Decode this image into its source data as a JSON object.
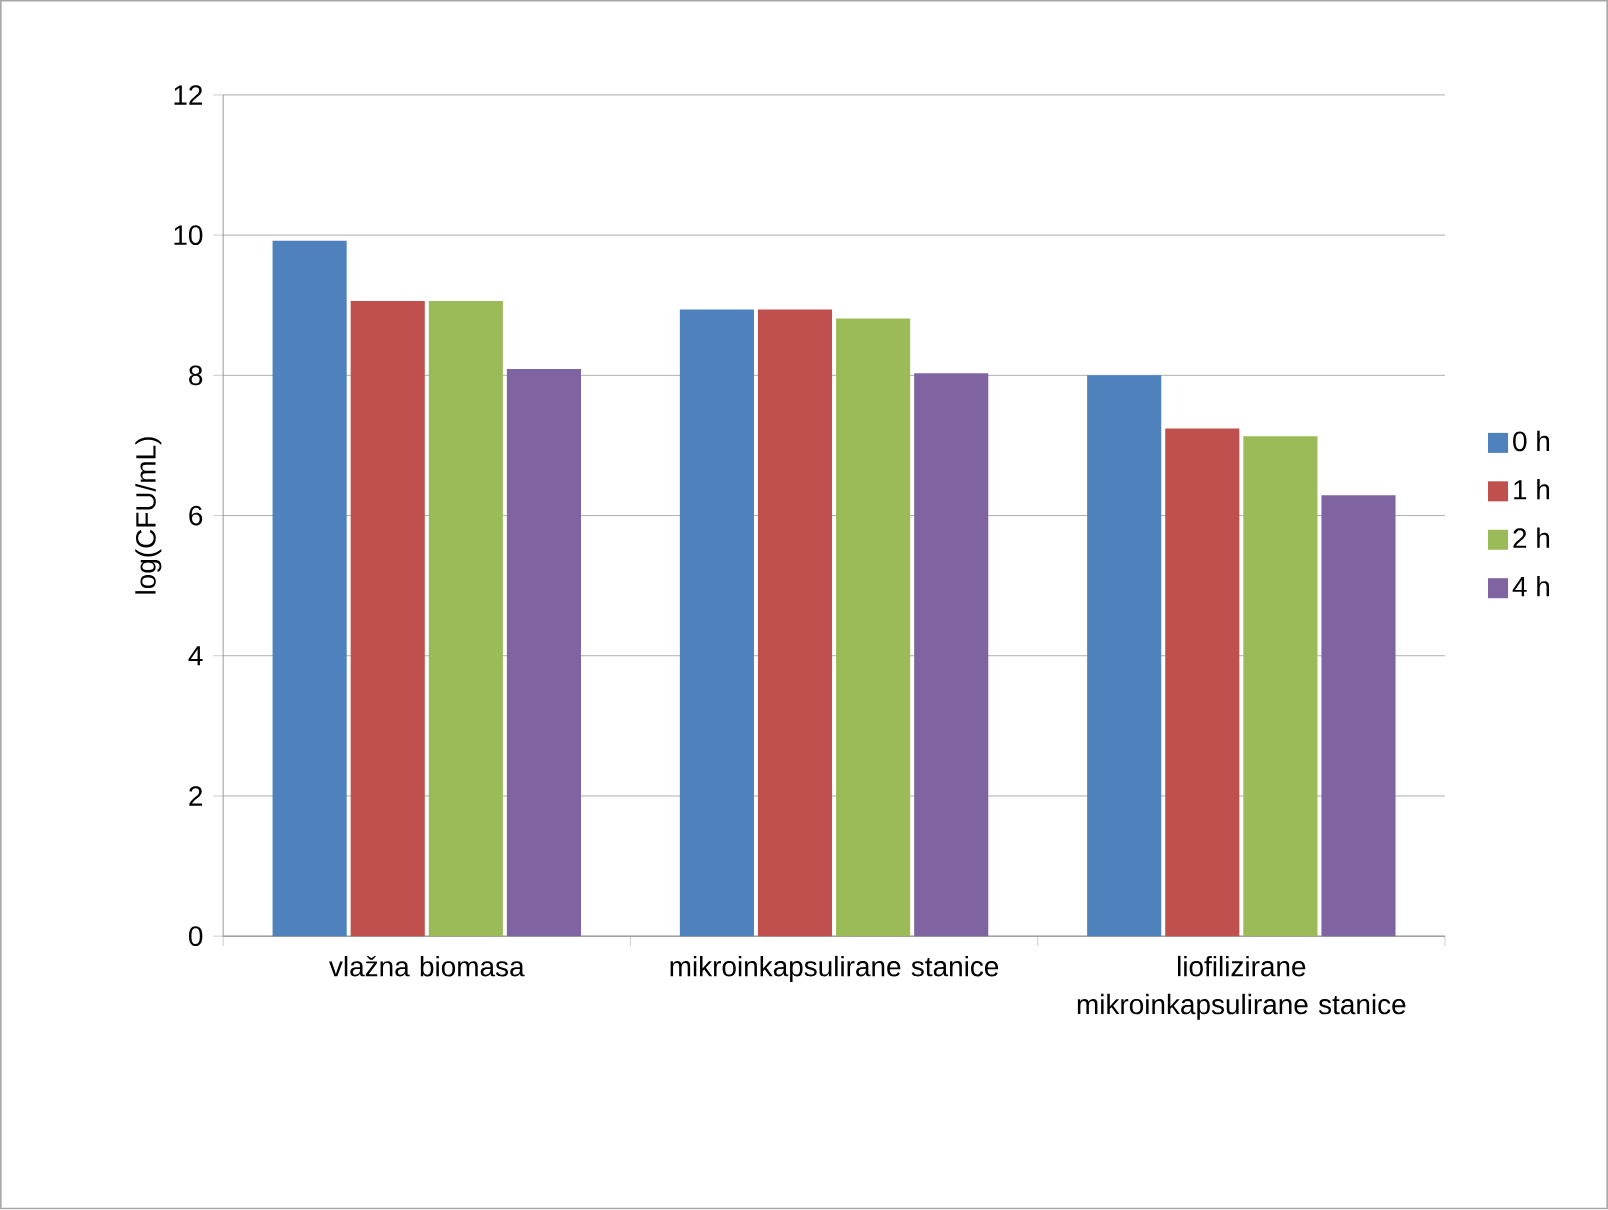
{
  "chart_data": {
    "type": "bar",
    "ylabel": "log(CFU/mL)",
    "categories": [
      "vlažna biomasa",
      "mikroinkapsulirane stanice",
      "liofilizirane mikroinkapsulirane stanice"
    ],
    "series": [
      {
        "name": "0 h",
        "color": "#4f81bd",
        "values": [
          9.92,
          8.94,
          8.0
        ]
      },
      {
        "name": "1 h",
        "color": "#c0504d",
        "values": [
          9.06,
          8.94,
          7.24
        ]
      },
      {
        "name": "2 h",
        "color": "#9bbb59",
        "values": [
          9.06,
          8.81,
          7.13
        ]
      },
      {
        "name": "4 h",
        "color": "#8064a2",
        "values": [
          8.09,
          8.03,
          6.29
        ]
      }
    ],
    "ylim": [
      0,
      12
    ],
    "yticks": [
      0,
      2,
      4,
      6,
      8,
      10,
      12
    ],
    "grid": "y",
    "legend": "right"
  }
}
